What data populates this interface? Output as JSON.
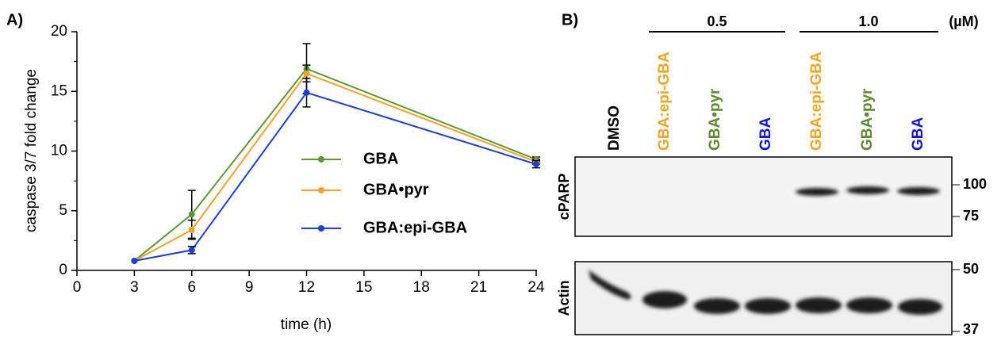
{
  "chart_data": {
    "type": "line",
    "panel_label": "A)",
    "x_label": "time (h)",
    "y_label": "caspase 3/7 fold change",
    "x": [
      3,
      6,
      12,
      24
    ],
    "xlim": [
      0,
      24
    ],
    "xticks": [
      0,
      3,
      6,
      9,
      12,
      15,
      18,
      21,
      24
    ],
    "ylim": [
      0,
      20
    ],
    "yticks": [
      0,
      5,
      10,
      15,
      20
    ],
    "series": [
      {
        "name": "GBA",
        "color": "#5b9a2f",
        "values": [
          0.8,
          4.7,
          16.9,
          9.3
        ],
        "errors": [
          null,
          2.0,
          2.1,
          0.2
        ]
      },
      {
        "name": "GBA•pyr",
        "color": "#f7a022",
        "values": [
          0.8,
          3.4,
          16.5,
          9.1
        ],
        "errors": [
          null,
          0.8,
          0.7,
          0.2
        ]
      },
      {
        "name": "GBA:epi-GBA",
        "color": "#1a3ee0",
        "values": [
          0.8,
          1.7,
          14.9,
          8.9
        ],
        "errors": [
          null,
          0.3,
          1.2,
          0.3
        ]
      }
    ]
  },
  "blot": {
    "panel_label": "B)",
    "unit": "(µM)",
    "concentrations": [
      "0.5",
      "1.0"
    ],
    "lanes": [
      {
        "label": "DMSO",
        "color": "#000000"
      },
      {
        "label": "GBA:epi-GBA",
        "color": "#f7a51c"
      },
      {
        "label": "GBA•pyr",
        "color": "#5b8a30"
      },
      {
        "label": "GBA",
        "color": "#1010ee"
      },
      {
        "label": "GBA:epi-GBA",
        "color": "#f7a51c"
      },
      {
        "label": "GBA•pyr",
        "color": "#5b8a30"
      },
      {
        "label": "GBA",
        "color": "#1010ee"
      }
    ],
    "rows": [
      {
        "label": "cPARP",
        "markers": [
          "100",
          "75"
        ]
      },
      {
        "label": "Actin",
        "markers": [
          "50",
          "37"
        ]
      }
    ]
  }
}
